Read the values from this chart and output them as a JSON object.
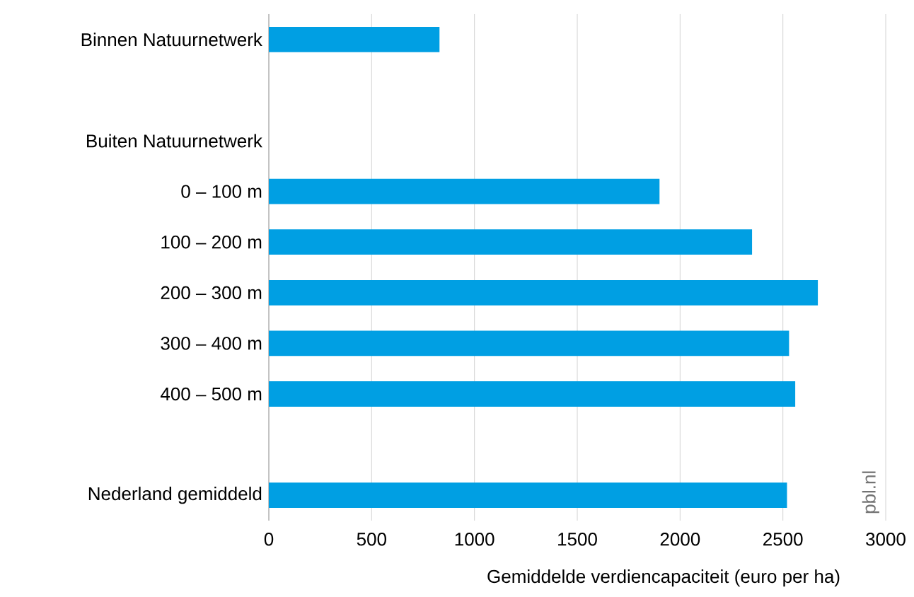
{
  "chart_data": {
    "type": "bar",
    "orientation": "horizontal",
    "categories": [
      "Binnen Natuurnetwerk",
      null,
      "Buiten Natuurnetwerk",
      "0 – 100 m",
      "100 – 200 m",
      "200 – 300 m",
      "300 – 400 m",
      "400 – 500 m",
      null,
      "Nederland gemiddeld"
    ],
    "values": [
      830,
      null,
      null,
      1900,
      2350,
      2670,
      2530,
      2560,
      null,
      2520
    ],
    "color": "#009fe3",
    "xlabel": "Gemiddelde verdiencapaciteit (euro per ha)",
    "xlim": [
      0,
      3000
    ],
    "xticks": [
      0,
      500,
      1000,
      1500,
      2000,
      2500,
      3000
    ],
    "grid": "x",
    "annotations": [
      "pbl.nl"
    ]
  }
}
